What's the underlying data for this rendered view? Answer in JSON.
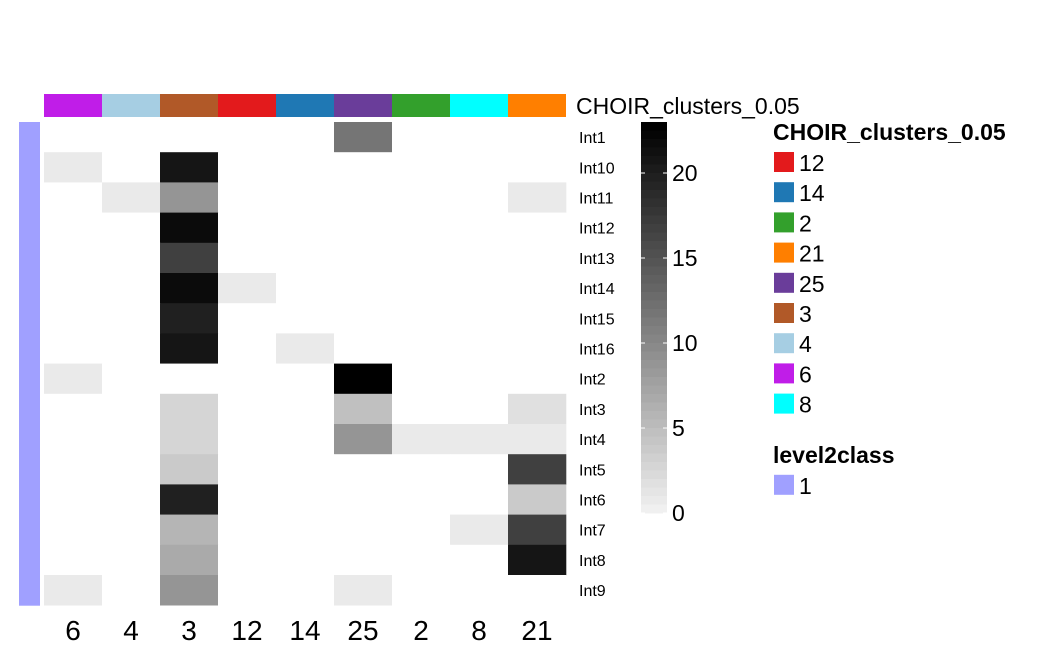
{
  "chart_data": {
    "type": "heatmap",
    "rows": [
      "Int1",
      "Int10",
      "Int11",
      "Int12",
      "Int13",
      "Int14",
      "Int15",
      "Int16",
      "Int2",
      "Int3",
      "Int4",
      "Int5",
      "Int6",
      "Int7",
      "Int8",
      "Int9"
    ],
    "columns": [
      "6",
      "4",
      "3",
      "12",
      "14",
      "25",
      "2",
      "8",
      "21"
    ],
    "values": [
      [
        0,
        0,
        0,
        0,
        0,
        12,
        0,
        0,
        0
      ],
      [
        1,
        0,
        21,
        0,
        0,
        0,
        0,
        0,
        0
      ],
      [
        0,
        1,
        9,
        0,
        0,
        0,
        0,
        0,
        1
      ],
      [
        0,
        0,
        22,
        0,
        0,
        0,
        0,
        0,
        0
      ],
      [
        0,
        0,
        17,
        0,
        0,
        0,
        0,
        0,
        0
      ],
      [
        0,
        0,
        22,
        1,
        0,
        0,
        0,
        0,
        0
      ],
      [
        0,
        0,
        20,
        0,
        0,
        0,
        0,
        0,
        0
      ],
      [
        0,
        0,
        21,
        0,
        1,
        0,
        0,
        0,
        0
      ],
      [
        1,
        0,
        0,
        0,
        0,
        23,
        0,
        0,
        0
      ],
      [
        0,
        0,
        3,
        0,
        0,
        5,
        0,
        0,
        2
      ],
      [
        0,
        0,
        3,
        0,
        0,
        9,
        1,
        1,
        1
      ],
      [
        0,
        0,
        4,
        0,
        0,
        0,
        0,
        0,
        17
      ],
      [
        0,
        0,
        20,
        0,
        0,
        0,
        0,
        0,
        4
      ],
      [
        0,
        0,
        6,
        0,
        0,
        0,
        0,
        1,
        17
      ],
      [
        0,
        0,
        7,
        0,
        0,
        0,
        0,
        0,
        21
      ],
      [
        1,
        0,
        9,
        0,
        0,
        1,
        0,
        0,
        0
      ]
    ],
    "scale": {
      "min": 0,
      "max": 23,
      "ticks": [
        0,
        5,
        10,
        15,
        20
      ],
      "low_color": "#ffffff",
      "high_color": "#000000"
    },
    "column_annotation": {
      "name": "CHOIR_clusters_0.05",
      "colors": [
        "#c01de8",
        "#a6cee3",
        "#b15928",
        "#e31a1c",
        "#1f78b4",
        "#6a3d9a",
        "#33a02c",
        "#00ffff",
        "#ff7f00"
      ]
    },
    "row_annotation": {
      "name": "level2class",
      "value": "1",
      "color": "#a0a0ff"
    },
    "legends": [
      {
        "title": "CHOIR_clusters_0.05",
        "items": [
          {
            "label": "12",
            "color": "#e31a1c"
          },
          {
            "label": "14",
            "color": "#1f78b4"
          },
          {
            "label": "2",
            "color": "#33a02c"
          },
          {
            "label": "21",
            "color": "#ff7f00"
          },
          {
            "label": "25",
            "color": "#6a3d9a"
          },
          {
            "label": "3",
            "color": "#b15928"
          },
          {
            "label": "4",
            "color": "#a6cee3"
          },
          {
            "label": "6",
            "color": "#c01de8"
          },
          {
            "label": "8",
            "color": "#00ffff"
          }
        ]
      },
      {
        "title": "level2class",
        "items": [
          {
            "label": "1",
            "color": "#a0a0ff"
          }
        ]
      }
    ]
  }
}
